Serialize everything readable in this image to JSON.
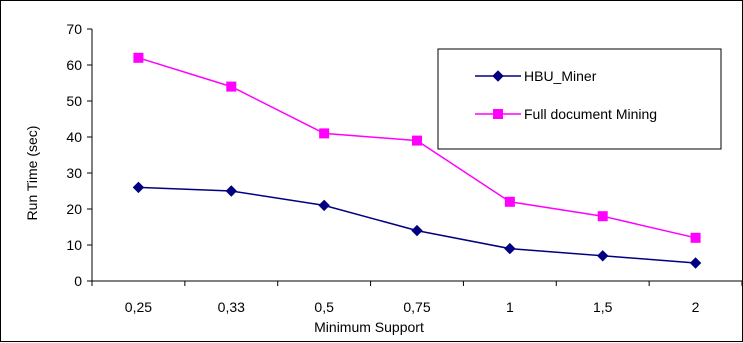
{
  "chart_data": {
    "type": "line",
    "title": "",
    "xlabel": "Minimum Support",
    "ylabel": "Run Time (sec)",
    "categories": [
      "0,25",
      "0,33",
      "0,5",
      "0,75",
      "1",
      "1,5",
      "2"
    ],
    "ylim": [
      0,
      70
    ],
    "yticks": [
      0,
      10,
      20,
      30,
      40,
      50,
      60,
      70
    ],
    "grid": false,
    "legend_position": "top-right",
    "series": [
      {
        "name": "HBU_Miner",
        "color": "#000080",
        "marker": "diamond",
        "values": [
          26,
          25,
          21,
          14,
          9,
          7,
          5
        ]
      },
      {
        "name": "Full document Mining",
        "color": "#FF00FF",
        "marker": "square",
        "values": [
          62,
          54,
          41,
          39,
          22,
          18,
          12
        ]
      }
    ]
  }
}
